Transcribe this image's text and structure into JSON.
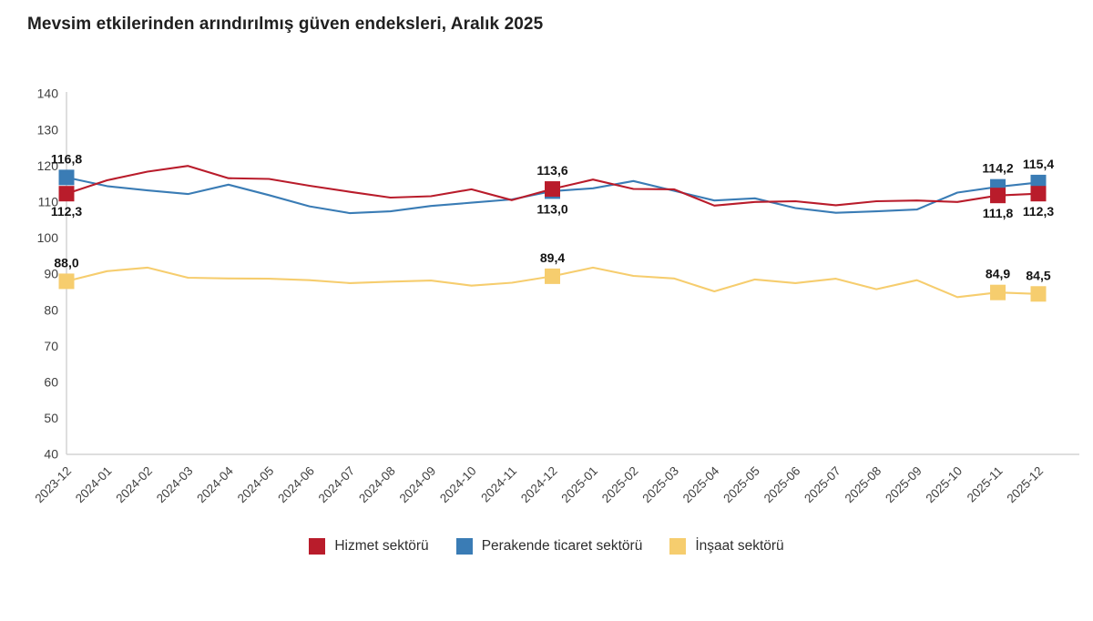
{
  "title": "Mevsim etkilerinden arındırılmış güven endeksleri, Aralık 2025",
  "colors": {
    "hizmet": "#b91c2b",
    "perakende": "#3a7cb5",
    "insaat": "#f6cd6e",
    "axis_line": "#d4d4d4",
    "axis_text": "#3f3f3f",
    "data_label_text": "#141414",
    "title_text": "#1f1f1f",
    "background": "#ffffff"
  },
  "legend": {
    "items": [
      {
        "label": "Hizmet sektörü",
        "color": "#b91c2b"
      },
      {
        "label": "Perakende ticaret sektörü",
        "color": "#3a7cb5"
      },
      {
        "label": "İnşaat sektörü",
        "color": "#f6cd6e"
      }
    ]
  },
  "chart_data": {
    "type": "line",
    "title": "Mevsim etkilerinden arındırılmış güven endeksleri, Aralık 2025",
    "x": [
      "2023-12",
      "2024-01",
      "2024-02",
      "2024-03",
      "2024-04",
      "2024-05",
      "2024-06",
      "2024-07",
      "2024-08",
      "2024-09",
      "2024-10",
      "2024-11",
      "2024-12",
      "2025-01",
      "2025-02",
      "2025-03",
      "2025-04",
      "2025-05",
      "2025-06",
      "2025-07",
      "2025-08",
      "2025-09",
      "2025-10",
      "2025-11",
      "2025-12"
    ],
    "series": [
      {
        "name": "Hizmet sektörü",
        "color": "#b91c2b",
        "values": [
          112.3,
          116.0,
          118.4,
          120.0,
          116.6,
          116.4,
          114.5,
          112.8,
          111.2,
          111.6,
          113.5,
          110.5,
          113.6,
          116.2,
          113.6,
          113.5,
          109.0,
          110.0,
          110.2,
          109.1,
          110.2,
          110.4,
          110.0,
          111.8,
          112.3
        ]
      },
      {
        "name": "Perakende ticaret sektörü",
        "color": "#3a7cb5",
        "values": [
          116.8,
          114.4,
          113.2,
          112.2,
          114.8,
          111.9,
          108.8,
          106.9,
          107.4,
          108.9,
          109.8,
          110.7,
          113.0,
          113.8,
          115.8,
          113.1,
          110.4,
          111.0,
          108.3,
          107.0,
          107.4,
          107.9,
          112.6,
          114.2,
          115.4
        ]
      },
      {
        "name": "İnşaat sektörü",
        "color": "#f6cd6e",
        "values": [
          88.0,
          90.8,
          91.8,
          89.0,
          88.8,
          88.7,
          88.3,
          87.5,
          87.9,
          88.2,
          86.8,
          87.6,
          89.4,
          91.8,
          89.5,
          88.8,
          85.2,
          88.5,
          87.5,
          88.7,
          85.8,
          88.3,
          83.6,
          84.9,
          84.5
        ]
      }
    ],
    "ylim": [
      40,
      140
    ],
    "ytick_step": 10,
    "grid": false,
    "legend_position": "bottom",
    "annotated_points": [
      {
        "series": 1,
        "index": 0,
        "label": "116,8",
        "position": "above"
      },
      {
        "series": 0,
        "index": 0,
        "label": "112,3",
        "position": "below"
      },
      {
        "series": 2,
        "index": 0,
        "label": "88,0",
        "position": "above"
      },
      {
        "series": 0,
        "index": 12,
        "label": "113,6",
        "position": "above"
      },
      {
        "series": 1,
        "index": 12,
        "label": "113,0",
        "position": "below"
      },
      {
        "series": 2,
        "index": 12,
        "label": "89,4",
        "position": "above"
      },
      {
        "series": 1,
        "index": 23,
        "label": "114,2",
        "position": "above"
      },
      {
        "series": 0,
        "index": 23,
        "label": "111,8",
        "position": "below"
      },
      {
        "series": 2,
        "index": 23,
        "label": "84,9",
        "position": "above"
      },
      {
        "series": 1,
        "index": 24,
        "label": "115,4",
        "position": "above"
      },
      {
        "series": 0,
        "index": 24,
        "label": "112,3",
        "position": "below"
      },
      {
        "series": 2,
        "index": 24,
        "label": "84,5",
        "position": "above"
      }
    ]
  }
}
